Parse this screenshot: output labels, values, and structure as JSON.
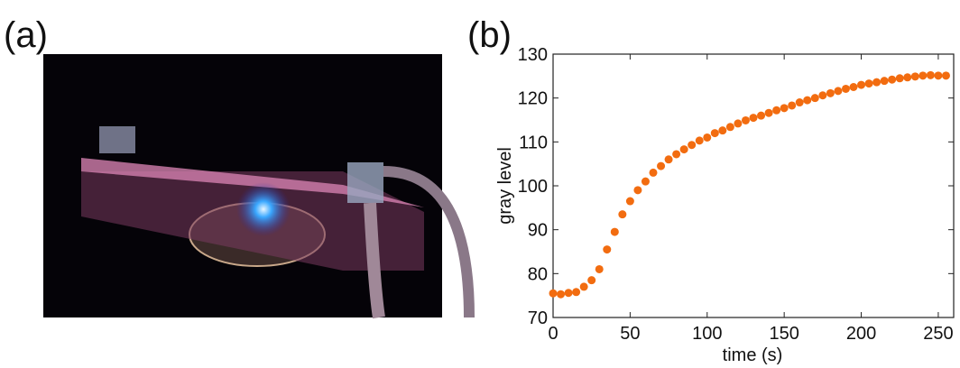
{
  "panel_labels": [
    "(a)",
    "(b)"
  ],
  "chart_data": {
    "type": "scatter",
    "xlabel": "time (s)",
    "ylabel": "gray level",
    "xlim": [
      0,
      260
    ],
    "ylim": [
      70,
      130
    ],
    "xticks": [
      0,
      50,
      100,
      150,
      200,
      250
    ],
    "yticks": [
      70,
      80,
      90,
      100,
      110,
      120,
      130
    ],
    "color": "#f26c10",
    "x": [
      0,
      5,
      10,
      15,
      20,
      25,
      30,
      35,
      40,
      45,
      50,
      55,
      60,
      65,
      70,
      75,
      80,
      85,
      90,
      95,
      100,
      105,
      110,
      115,
      120,
      125,
      130,
      135,
      140,
      145,
      150,
      155,
      160,
      165,
      170,
      175,
      180,
      185,
      190,
      195,
      200,
      205,
      210,
      215,
      220,
      225,
      230,
      235,
      240,
      245,
      250,
      255
    ],
    "values": [
      75.5,
      75.3,
      75.6,
      75.8,
      77,
      78.5,
      81,
      85.5,
      89.5,
      93.5,
      96.5,
      99,
      101,
      103,
      104.5,
      106,
      107.2,
      108.3,
      109.3,
      110.3,
      111,
      112,
      112.6,
      113.4,
      114.2,
      114.9,
      115.5,
      116,
      116.6,
      117.2,
      117.7,
      118.3,
      119,
      119.5,
      120,
      120.6,
      121.1,
      121.6,
      122.1,
      122.5,
      123,
      123.3,
      123.6,
      123.9,
      124.2,
      124.5,
      124.7,
      124.9,
      125.1,
      125.2,
      125.1,
      125.1
    ]
  }
}
